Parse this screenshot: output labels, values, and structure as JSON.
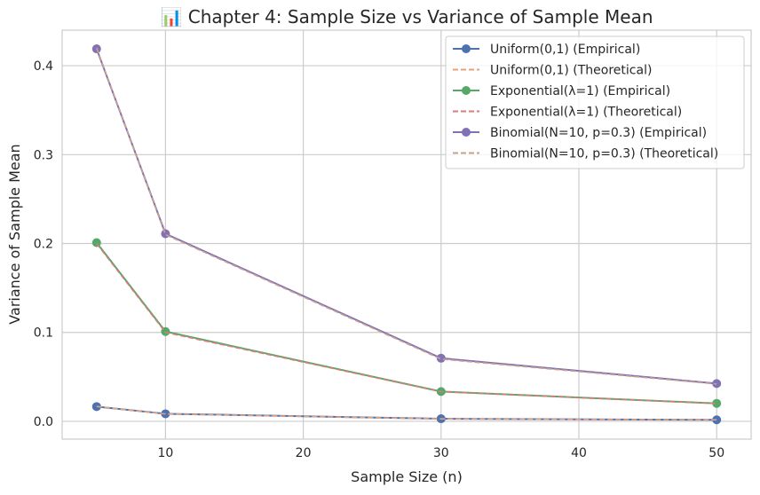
{
  "chart_data": {
    "type": "line",
    "title": "📊 Chapter 4: Sample Size vs Variance of Sample Mean",
    "xlabel": "Sample Size (n)",
    "ylabel": "Variance of Sample Mean",
    "x": [
      5,
      10,
      30,
      50
    ],
    "xlim": [
      2.5,
      52.5
    ],
    "ylim": [
      -0.02,
      0.44
    ],
    "xticks": [
      10,
      20,
      30,
      40,
      50
    ],
    "yticks": [
      0.0,
      0.1,
      0.2,
      0.3,
      0.4
    ],
    "grid": true,
    "legend_position": "top-right",
    "series": [
      {
        "name": "Uniform(0,1) (Empirical)",
        "values": [
          0.0166,
          0.0085,
          0.0029,
          0.0017
        ],
        "color": "#4c72b0",
        "style": "solid",
        "marker": true
      },
      {
        "name": "Uniform(0,1) (Theoretical)",
        "values": [
          0.0167,
          0.0083,
          0.0028,
          0.0017
        ],
        "color": "#e8a07c",
        "style": "dashed",
        "marker": false
      },
      {
        "name": "Exponential(λ=1) (Empirical)",
        "values": [
          0.201,
          0.101,
          0.0335,
          0.0202
        ],
        "color": "#55a868",
        "style": "solid",
        "marker": true
      },
      {
        "name": "Exponential(λ=1) (Theoretical)",
        "values": [
          0.2,
          0.1,
          0.0333,
          0.02
        ],
        "color": "#dd7a7a",
        "style": "dashed",
        "marker": false
      },
      {
        "name": "Binomial(N=10, p=0.3) (Empirical)",
        "values": [
          0.419,
          0.211,
          0.071,
          0.0425
        ],
        "color": "#8172b3",
        "style": "solid",
        "marker": true
      },
      {
        "name": "Binomial(N=10, p=0.3) (Theoretical)",
        "values": [
          0.42,
          0.21,
          0.07,
          0.042
        ],
        "color": "#c9a08c",
        "style": "dashed",
        "marker": false
      }
    ]
  }
}
